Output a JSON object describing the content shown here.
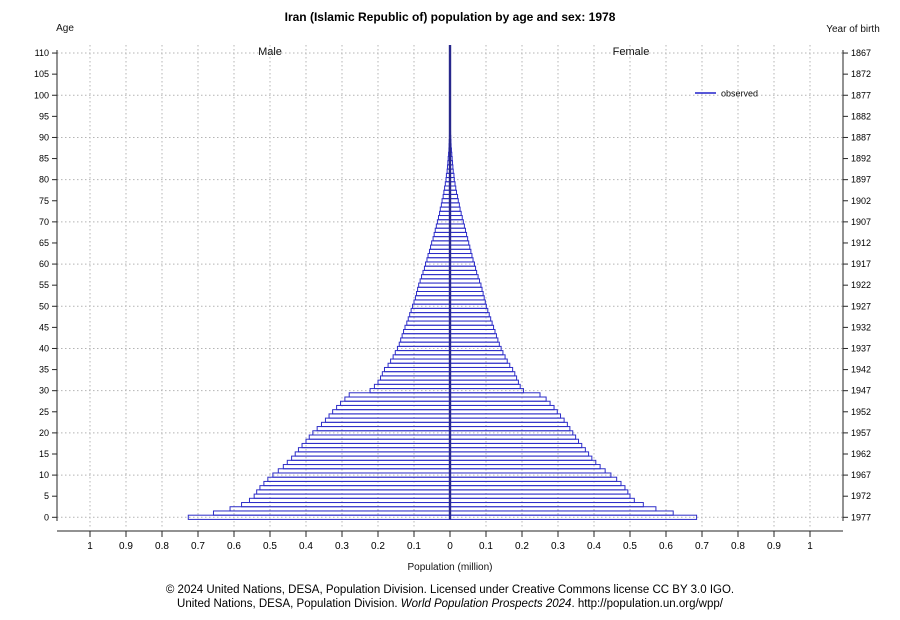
{
  "title": "Iran (Islamic Republic of) population by age and sex: 1978",
  "male_label": "Male",
  "female_label": "Female",
  "legend": {
    "label": "observed",
    "color": "#2222cc"
  },
  "left_axis": {
    "label": "Age",
    "ticks": [
      0,
      5,
      10,
      15,
      20,
      25,
      30,
      35,
      40,
      45,
      50,
      55,
      60,
      65,
      70,
      75,
      80,
      85,
      90,
      95,
      100,
      105,
      110
    ]
  },
  "right_axis": {
    "label": "Year of birth",
    "ticks": [
      1867,
      1872,
      1877,
      1882,
      1887,
      1892,
      1897,
      1902,
      1907,
      1912,
      1917,
      1922,
      1927,
      1932,
      1937,
      1942,
      1947,
      1952,
      1957,
      1962,
      1967,
      1972,
      1977
    ]
  },
  "x_axis": {
    "label": "Population (million)",
    "tick_labels": [
      "1",
      "0.9",
      "0.8",
      "0.7",
      "0.6",
      "0.5",
      "0.4",
      "0.3",
      "0.2",
      "0.1",
      "0",
      "0.1",
      "0.2",
      "0.3",
      "0.4",
      "0.5",
      "0.6",
      "0.7",
      "0.8",
      "0.9",
      "1"
    ]
  },
  "footer": {
    "line1": "© 2024 United Nations, DESA, Population Division. Licensed under Creative Commons license CC BY 3.0 IGO.",
    "line2_prefix": "United Nations, DESA, Population Division. ",
    "line2_italic": "World Population Prospects 2024",
    "line2_suffix": ". http://population.un.org/wpp/"
  },
  "colors": {
    "bar": "#2d2dc8",
    "center_line": "#28288c",
    "grid": "#b4b4b4",
    "axis": "#262626"
  },
  "chart_data": {
    "type": "bar",
    "subtype": "population-pyramid",
    "title": "Iran (Islamic Republic of) population by age and sex: 1978",
    "xlabel": "Population (million)",
    "ylabel_left": "Age",
    "ylabel_right": "Year of birth",
    "xlim_million": [
      1.0,
      0,
      1.0
    ],
    "age_min": 0,
    "age_max": 110,
    "grid": "dotted",
    "legend_position": "upper-right",
    "legend_entries": [
      "observed"
    ],
    "series": [
      {
        "name": "male",
        "side": "left",
        "values": [
          0.727,
          0.657,
          0.611,
          0.579,
          0.557,
          0.544,
          0.537,
          0.528,
          0.517,
          0.506,
          0.492,
          0.477,
          0.463,
          0.452,
          0.44,
          0.43,
          0.421,
          0.411,
          0.4,
          0.391,
          0.381,
          0.369,
          0.357,
          0.346,
          0.336,
          0.326,
          0.315,
          0.304,
          0.292,
          0.28,
          0.222,
          0.21,
          0.2,
          0.193,
          0.188,
          0.182,
          0.172,
          0.165,
          0.158,
          0.152,
          0.146,
          0.141,
          0.137,
          0.133,
          0.129,
          0.125,
          0.12,
          0.116,
          0.112,
          0.108,
          0.104,
          0.1,
          0.096,
          0.093,
          0.09,
          0.087,
          0.083,
          0.079,
          0.075,
          0.071,
          0.068,
          0.064,
          0.061,
          0.057,
          0.054,
          0.051,
          0.047,
          0.044,
          0.041,
          0.038,
          0.035,
          0.032,
          0.029,
          0.027,
          0.024,
          0.022,
          0.019,
          0.017,
          0.015,
          0.013,
          0.011,
          0.01,
          0.008,
          0.007,
          0.006,
          0.005,
          0.004,
          0.003,
          0.0025,
          0.002,
          0.0015,
          0.0012,
          0.0009,
          0.0007,
          0.0005,
          0.0004,
          0.0003,
          0.0002,
          0.00015,
          0.0001,
          8e-05,
          6e-05,
          4e-05,
          3e-05,
          2e-05,
          1.5e-05,
          1e-05,
          7e-06,
          5e-06,
          3e-06,
          2e-06
        ]
      },
      {
        "name": "female",
        "side": "right",
        "values": [
          0.685,
          0.62,
          0.572,
          0.537,
          0.512,
          0.5,
          0.494,
          0.486,
          0.475,
          0.463,
          0.447,
          0.431,
          0.417,
          0.405,
          0.394,
          0.385,
          0.376,
          0.366,
          0.357,
          0.349,
          0.341,
          0.333,
          0.326,
          0.317,
          0.307,
          0.298,
          0.289,
          0.278,
          0.267,
          0.25,
          0.204,
          0.195,
          0.19,
          0.185,
          0.18,
          0.174,
          0.166,
          0.159,
          0.153,
          0.147,
          0.142,
          0.137,
          0.133,
          0.129,
          0.125,
          0.121,
          0.117,
          0.113,
          0.109,
          0.105,
          0.101,
          0.098,
          0.095,
          0.092,
          0.089,
          0.086,
          0.082,
          0.078,
          0.074,
          0.071,
          0.068,
          0.064,
          0.061,
          0.058,
          0.055,
          0.052,
          0.049,
          0.046,
          0.043,
          0.04,
          0.037,
          0.034,
          0.031,
          0.028,
          0.026,
          0.023,
          0.021,
          0.018,
          0.016,
          0.014,
          0.012,
          0.011,
          0.009,
          0.008,
          0.007,
          0.006,
          0.005,
          0.004,
          0.003,
          0.0025,
          0.002,
          0.0015,
          0.0012,
          0.0009,
          0.0007,
          0.0005,
          0.0004,
          0.0003,
          0.0002,
          0.00015,
          0.0001,
          8e-05,
          6e-05,
          4e-05,
          3e-05,
          2e-05,
          1.5e-05,
          1e-05,
          7e-06,
          5e-06,
          3e-06
        ]
      }
    ]
  }
}
